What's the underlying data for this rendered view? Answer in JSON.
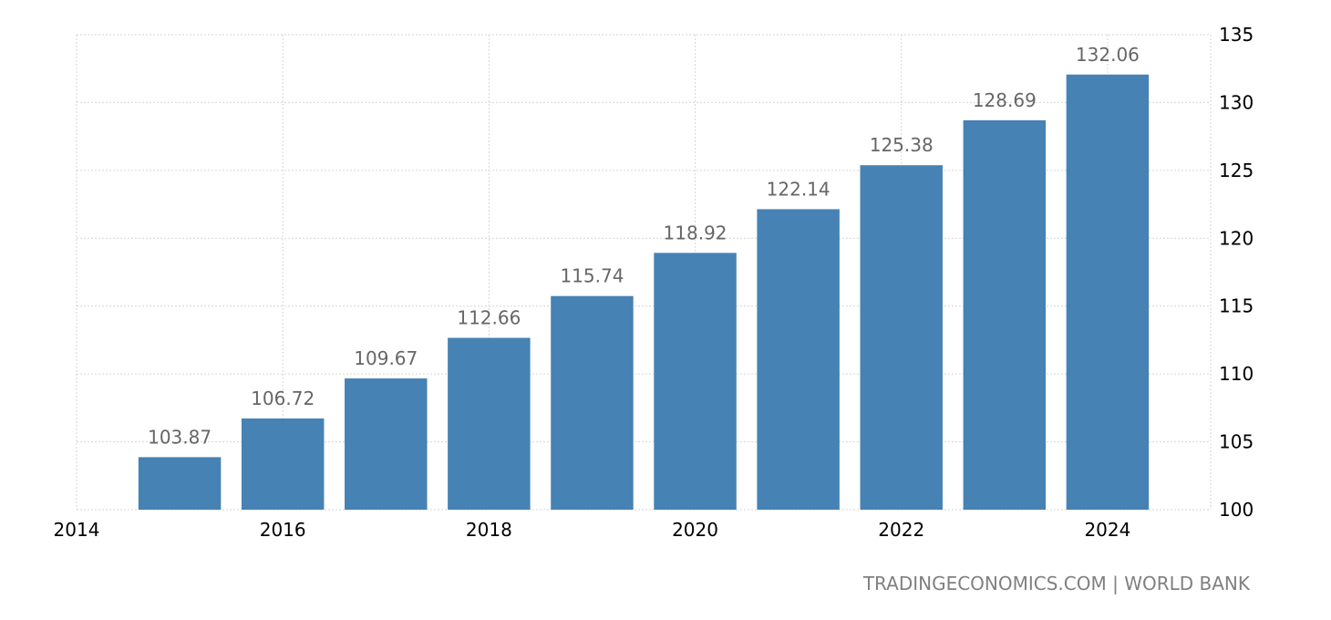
{
  "chart_data": {
    "type": "bar",
    "x": [
      2015,
      2016,
      2017,
      2018,
      2019,
      2020,
      2021,
      2022,
      2023,
      2024
    ],
    "values": [
      103.87,
      106.72,
      109.67,
      112.66,
      115.74,
      118.92,
      122.14,
      125.38,
      128.69,
      132.06
    ],
    "data_labels": [
      "103.87",
      "106.72",
      "109.67",
      "112.66",
      "115.74",
      "118.92",
      "122.14",
      "125.38",
      "128.69",
      "132.06"
    ],
    "xlim": [
      2014,
      2025
    ],
    "x_ticks": [
      "2014",
      "2016",
      "2018",
      "2020",
      "2022",
      "2024"
    ],
    "ylim": [
      100,
      135
    ],
    "y_ticks": [
      "100",
      "105",
      "110",
      "115",
      "120",
      "125",
      "130",
      "135"
    ],
    "y_axis_side": "right",
    "grid": true,
    "bar_color": "#4682b4",
    "title": "",
    "xlabel": "",
    "ylabel": ""
  },
  "source": {
    "text": "TRADINGECONOMICS.COM | WORLD BANK"
  }
}
